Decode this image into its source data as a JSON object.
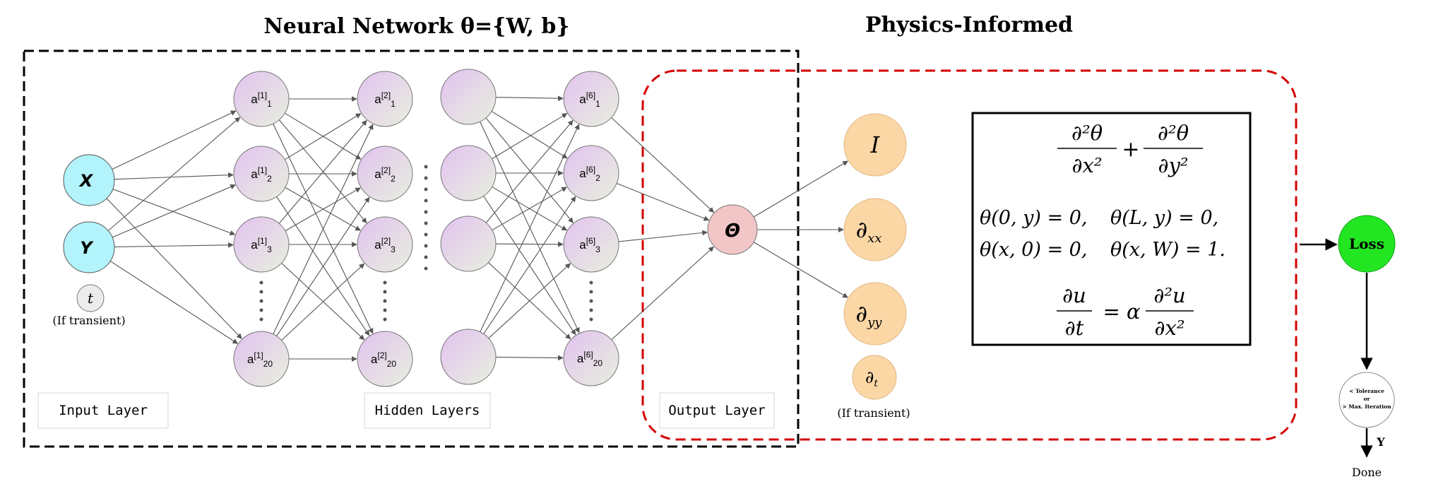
{
  "titles": {
    "network": "Neural Network θ={W, b}",
    "physics": "Physics-Informed"
  },
  "layers": {
    "input": "Input Layer",
    "hidden": "Hidden Layers",
    "output": "Output Layer"
  },
  "inputs": {
    "x": "X",
    "y": "Y",
    "t": "t",
    "t_note": "(If transient)"
  },
  "hidden_nodes": {
    "layer1": [
      {
        "base": "a",
        "sup": "[1]",
        "sub": "1"
      },
      {
        "base": "a",
        "sup": "[1]",
        "sub": "2"
      },
      {
        "base": "a",
        "sup": "[1]",
        "sub": "3"
      },
      {
        "base": "a",
        "sup": "[1]",
        "sub": "20"
      }
    ],
    "layer2": [
      {
        "base": "a",
        "sup": "[2]",
        "sub": "1"
      },
      {
        "base": "a",
        "sup": "[2]",
        "sub": "2"
      },
      {
        "base": "a",
        "sup": "[2]",
        "sub": "3"
      },
      {
        "base": "a",
        "sup": "[2]",
        "sub": "20"
      }
    ],
    "layer6": [
      {
        "base": "a",
        "sup": "[6]",
        "sub": "1"
      },
      {
        "base": "a",
        "sup": "[6]",
        "sub": "2"
      },
      {
        "base": "a",
        "sup": "[6]",
        "sub": "3"
      },
      {
        "base": "a",
        "sup": "[6]",
        "sub": "20"
      }
    ]
  },
  "output": {
    "label": "Θ"
  },
  "derivatives": {
    "identity": "I",
    "dxx_base": "∂",
    "dxx_sub": "xx",
    "dyy_base": "∂",
    "dyy_sub": "yy",
    "dt_base": "∂",
    "dt_sub": "t",
    "dt_note": "(If transient)"
  },
  "equations": {
    "laplace_num1": "∂²θ",
    "laplace_den1": "∂x²",
    "plus": "+",
    "laplace_num2": "∂²θ",
    "laplace_den2": "∂y²",
    "bc_row1_a": "θ(0, y) = 0,",
    "bc_row1_b": "θ(L, y) = 0,",
    "bc_row2_a": "θ(x, 0) = 0,",
    "bc_row2_b": "θ(x, W) = 1.",
    "heat_lhs_num": "∂u",
    "heat_lhs_den": "∂t",
    "heat_eq": "= α",
    "heat_rhs_num": "∂²u",
    "heat_rhs_den": "∂x²"
  },
  "loss": {
    "label": "Loss",
    "check_line1": "< Tolerance",
    "check_line2": "or",
    "check_line3": "> Max. Iteration",
    "yes": "Y",
    "done": "Done"
  },
  "colors": {
    "input_node": "#b3f3fb",
    "hidden_node_start": "#e6c8f0",
    "hidden_node_end": "#e6ecdc",
    "output_node": "#f2c6c6",
    "derivative_node": "#fbd7a6",
    "loss_node": "#22e622",
    "network_border": "#000000",
    "physics_border": "#d40000"
  }
}
